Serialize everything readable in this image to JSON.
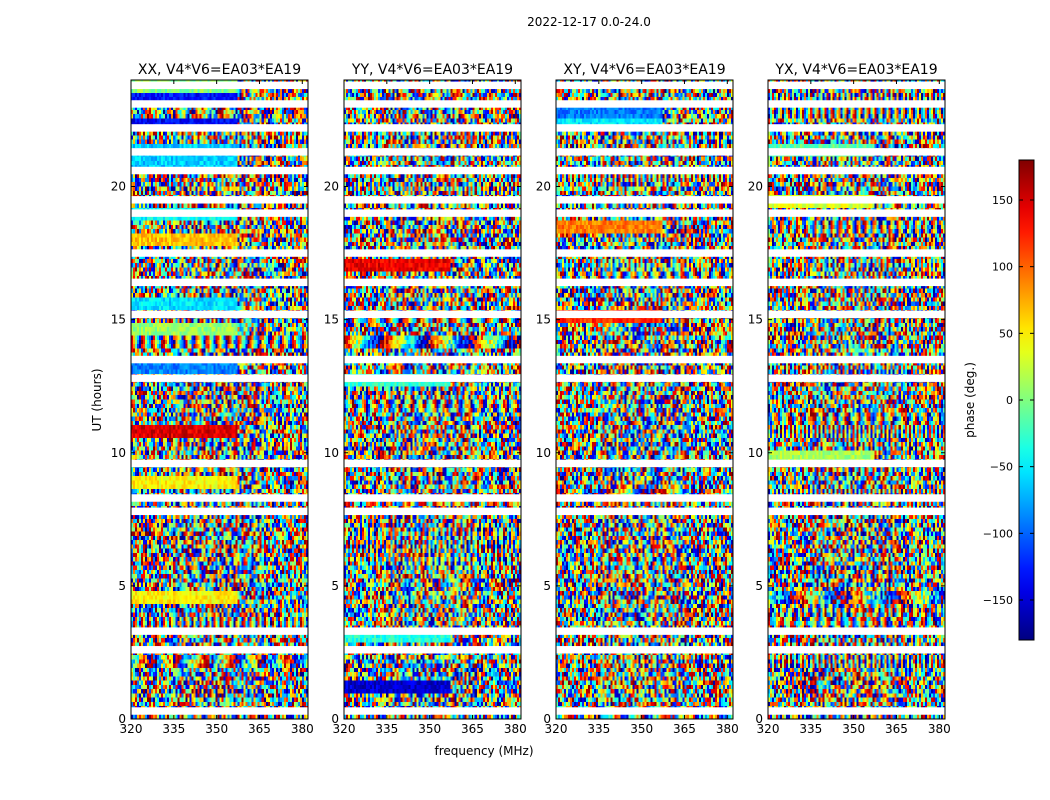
{
  "chart_data": {
    "type": "heatmap",
    "suptitle": "2022-12-17 0.0-24.0",
    "xlabel": "frequency (MHz)",
    "ylabel": "UT (hours)",
    "xlim": [
      320,
      382
    ],
    "ylim": [
      0,
      24
    ],
    "x_ticks": [
      320,
      335,
      350,
      365,
      380
    ],
    "y_ticks": [
      0,
      5,
      10,
      15,
      20
    ],
    "panels": [
      {
        "title": "XX, V4*V6=EA03*EA19",
        "polarization": "XX"
      },
      {
        "title": "YY, V4*V6=EA03*EA19",
        "polarization": "YY"
      },
      {
        "title": "XY, V4*V6=EA03*EA19",
        "polarization": "XY"
      },
      {
        "title": "YX, V4*V6=EA03*EA19",
        "polarization": "YX"
      }
    ],
    "colorbar": {
      "label": "phase (deg.)",
      "range": [
        -180,
        180
      ],
      "ticks": [
        -150,
        -100,
        -50,
        0,
        50,
        100,
        150
      ],
      "tick_labels": [
        "−150",
        "−100",
        "−50",
        "0",
        "50",
        "100",
        "150"
      ],
      "colormap": "jet"
    },
    "blank_rows_hours": [
      0.3,
      2.6,
      3.3,
      7.8,
      8.3,
      9.6,
      12.8,
      13.5,
      15.2,
      16.4,
      17.5,
      19.0,
      19.5,
      20.6,
      21.3,
      22.2,
      23.1,
      23.8
    ]
  }
}
